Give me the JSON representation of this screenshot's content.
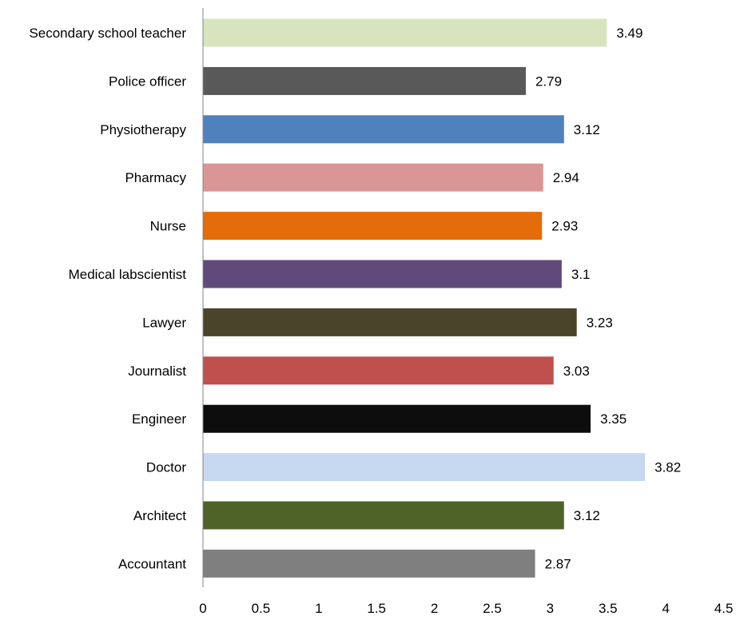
{
  "chart_data": {
    "type": "bar",
    "orientation": "horizontal",
    "title": "",
    "xlabel": "",
    "ylabel": "",
    "xlim": [
      0,
      4.5
    ],
    "grid": false,
    "legend": "none",
    "categories": [
      "Secondary school teacher",
      "Police officer",
      "Physiotherapy",
      "Pharmacy",
      "Nurse",
      "Medical labscientist",
      "Lawyer",
      "Journalist",
      "Engineer",
      "Doctor",
      "Architect",
      "Accountant"
    ],
    "values": [
      3.49,
      2.79,
      3.12,
      2.94,
      2.93,
      3.1,
      3.23,
      3.03,
      3.35,
      3.82,
      3.12,
      2.87
    ],
    "value_labels": [
      "3.49",
      "2.79",
      "3.12",
      "2.94",
      "2.93",
      "3.1",
      "3.23",
      "3.03",
      "3.35",
      "3.82",
      "3.12",
      "2.87"
    ],
    "colors": [
      "#d7e4bd",
      "#595959",
      "#4f81bd",
      "#d99694",
      "#e46c0a",
      "#604a7b",
      "#4a452a",
      "#c0504d",
      "#0d0d0d",
      "#c6d9f1",
      "#4f6228",
      "#7f7f7f"
    ],
    "x_ticks": [
      "0",
      "0.5",
      "1",
      "1.5",
      "2",
      "2.5",
      "3",
      "3.5",
      "4",
      "4.5"
    ]
  }
}
